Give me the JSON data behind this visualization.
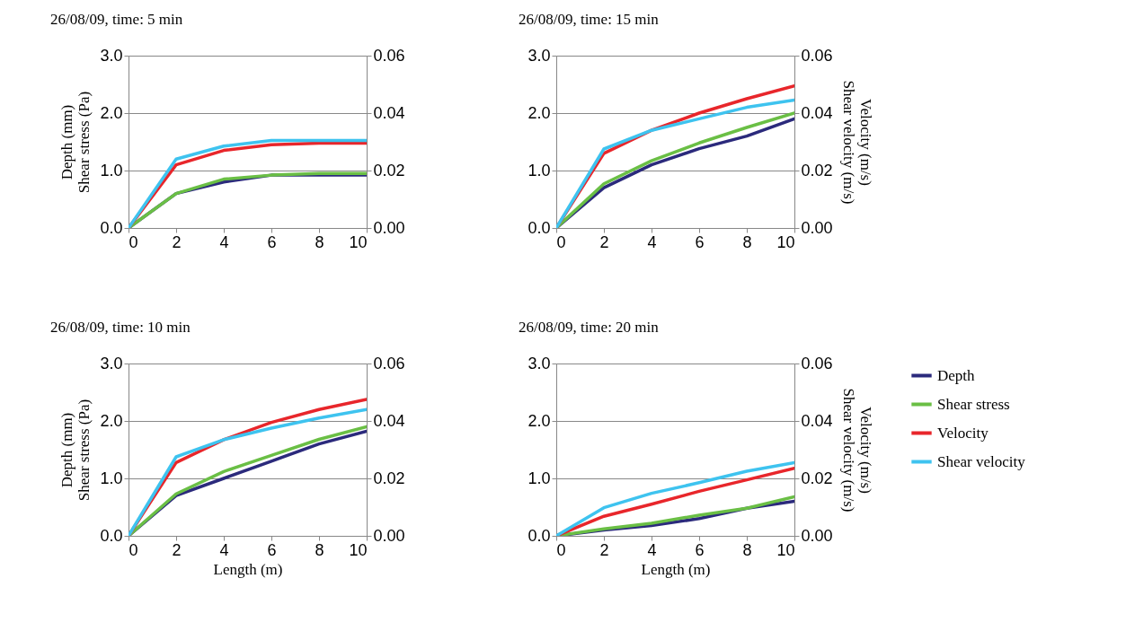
{
  "chart_data": [
    {
      "type": "line",
      "title": "26/08/09, time: 5 min",
      "ylabel": "Depth (mm)\nShear stress (Pa)",
      "x": [
        0,
        2,
        4,
        6,
        8,
        10
      ],
      "xlim": [
        0,
        10
      ],
      "xticks": [
        0,
        2,
        4,
        6,
        8,
        10
      ],
      "ylim": [
        0,
        3
      ],
      "yticks": [
        {
          "value": 0,
          "label": "0.0"
        },
        {
          "value": 1,
          "label": "1.0"
        },
        {
          "value": 2,
          "label": "2.0"
        },
        {
          "value": 3,
          "label": "3.0"
        }
      ],
      "y2lim": [
        0,
        0.06
      ],
      "y2ticks": [
        {
          "value": 0,
          "label": "0.00"
        },
        0.02,
        0.04,
        0.06
      ],
      "grid": "y",
      "series": [
        {
          "color": "#2b2a7c",
          "values": [
            0,
            0.6,
            0.8,
            0.92,
            0.92,
            0.92
          ]
        },
        {
          "color": "#6abf45",
          "values": [
            0,
            0.6,
            0.85,
            0.92,
            0.95,
            0.95
          ]
        },
        {
          "color": "#e8262b",
          "axis": "y2",
          "values": [
            0,
            0.022,
            0.027,
            0.029,
            0.0295,
            0.0295
          ]
        },
        {
          "color": "#3ec3ef",
          "axis": "y2",
          "values": [
            0,
            0.024,
            0.0285,
            0.0305,
            0.0305,
            0.0305
          ]
        }
      ]
    },
    {
      "type": "line",
      "title": "26/08/09, time: 15 min",
      "y2label": "Velocity (m/s)\nShear velocity (m/s)",
      "x": [
        0,
        2,
        4,
        6,
        8,
        10
      ],
      "xlim": [
        0,
        10
      ],
      "xticks": [
        0,
        2,
        4,
        6,
        8,
        10
      ],
      "ylim": [
        0,
        3
      ],
      "yticks": [
        {
          "value": 0,
          "label": "0.0"
        },
        {
          "value": 1,
          "label": "1.0"
        },
        {
          "value": 2,
          "label": "2.0"
        },
        {
          "value": 3,
          "label": "3.0"
        }
      ],
      "y2lim": [
        0,
        0.06
      ],
      "y2ticks": [
        {
          "value": 0,
          "label": "0.00"
        },
        0.02,
        0.04,
        0.06
      ],
      "grid": "y",
      "series": [
        {
          "color": "#2b2a7c",
          "values": [
            0,
            0.7,
            1.1,
            1.38,
            1.6,
            1.9
          ]
        },
        {
          "color": "#6abf45",
          "values": [
            0,
            0.77,
            1.17,
            1.48,
            1.75,
            2.0
          ]
        },
        {
          "color": "#e8262b",
          "axis": "y2",
          "values": [
            0,
            0.026,
            0.034,
            0.04,
            0.045,
            0.0495
          ]
        },
        {
          "color": "#3ec3ef",
          "axis": "y2",
          "values": [
            0,
            0.0275,
            0.034,
            0.038,
            0.042,
            0.0445
          ]
        }
      ]
    },
    {
      "type": "line",
      "title": "26/08/09, time: 10 min",
      "xlabel": "Length (m)",
      "ylabel": "Depth (mm)\nShear stress (Pa)",
      "x": [
        0,
        2,
        4,
        6,
        8,
        10
      ],
      "xlim": [
        0,
        10
      ],
      "xticks": [
        0,
        2,
        4,
        6,
        8,
        10
      ],
      "ylim": [
        0,
        3
      ],
      "yticks": [
        {
          "value": 0,
          "label": "0.0"
        },
        {
          "value": 1,
          "label": "1.0"
        },
        {
          "value": 2,
          "label": "2.0"
        },
        {
          "value": 3,
          "label": "3.0"
        }
      ],
      "y2lim": [
        0,
        0.06
      ],
      "y2ticks": [
        {
          "value": 0,
          "label": "0.00"
        },
        0.02,
        0.04,
        0.06
      ],
      "grid": "y",
      "series": [
        {
          "color": "#2b2a7c",
          "values": [
            0,
            0.7,
            1.0,
            1.3,
            1.6,
            1.82
          ]
        },
        {
          "color": "#6abf45",
          "values": [
            0,
            0.73,
            1.12,
            1.4,
            1.68,
            1.9
          ]
        },
        {
          "color": "#e8262b",
          "axis": "y2",
          "values": [
            0,
            0.0255,
            0.0335,
            0.0395,
            0.044,
            0.0475
          ]
        },
        {
          "color": "#3ec3ef",
          "axis": "y2",
          "values": [
            0,
            0.0275,
            0.0335,
            0.0375,
            0.041,
            0.044
          ]
        }
      ]
    },
    {
      "type": "line",
      "title": "26/08/09, time: 20 min",
      "xlabel": "Length (m)",
      "y2label": "Velocity (m/s)\nShear velocity (m/s)",
      "x": [
        0,
        2,
        4,
        6,
        8,
        10
      ],
      "xlim": [
        0,
        10
      ],
      "xticks": [
        0,
        2,
        4,
        6,
        8,
        10
      ],
      "ylim": [
        0,
        3
      ],
      "yticks": [
        {
          "value": 0,
          "label": "0.0"
        },
        {
          "value": 1,
          "label": "1.0"
        },
        {
          "value": 2,
          "label": "2.0"
        },
        {
          "value": 3,
          "label": "3.0"
        }
      ],
      "y2lim": [
        0,
        0.06
      ],
      "y2ticks": [
        {
          "value": 0,
          "label": "0.00"
        },
        0.02,
        0.04,
        0.06
      ],
      "grid": "y",
      "legend": "right",
      "series": [
        {
          "name": "Depth",
          "color": "#2b2a7c",
          "values": [
            0,
            0.1,
            0.18,
            0.3,
            0.48,
            0.6
          ]
        },
        {
          "name": "Shear stress",
          "color": "#6abf45",
          "values": [
            0,
            0.12,
            0.22,
            0.36,
            0.48,
            0.68
          ]
        },
        {
          "name": "Velocity",
          "color": "#e8262b",
          "axis": "y2",
          "values": [
            0,
            0.0068,
            0.011,
            0.0155,
            0.0195,
            0.0235
          ]
        },
        {
          "name": "Shear velocity",
          "color": "#3ec3ef",
          "axis": "y2",
          "values": [
            0,
            0.0098,
            0.0148,
            0.0185,
            0.0225,
            0.0255
          ]
        }
      ]
    }
  ]
}
